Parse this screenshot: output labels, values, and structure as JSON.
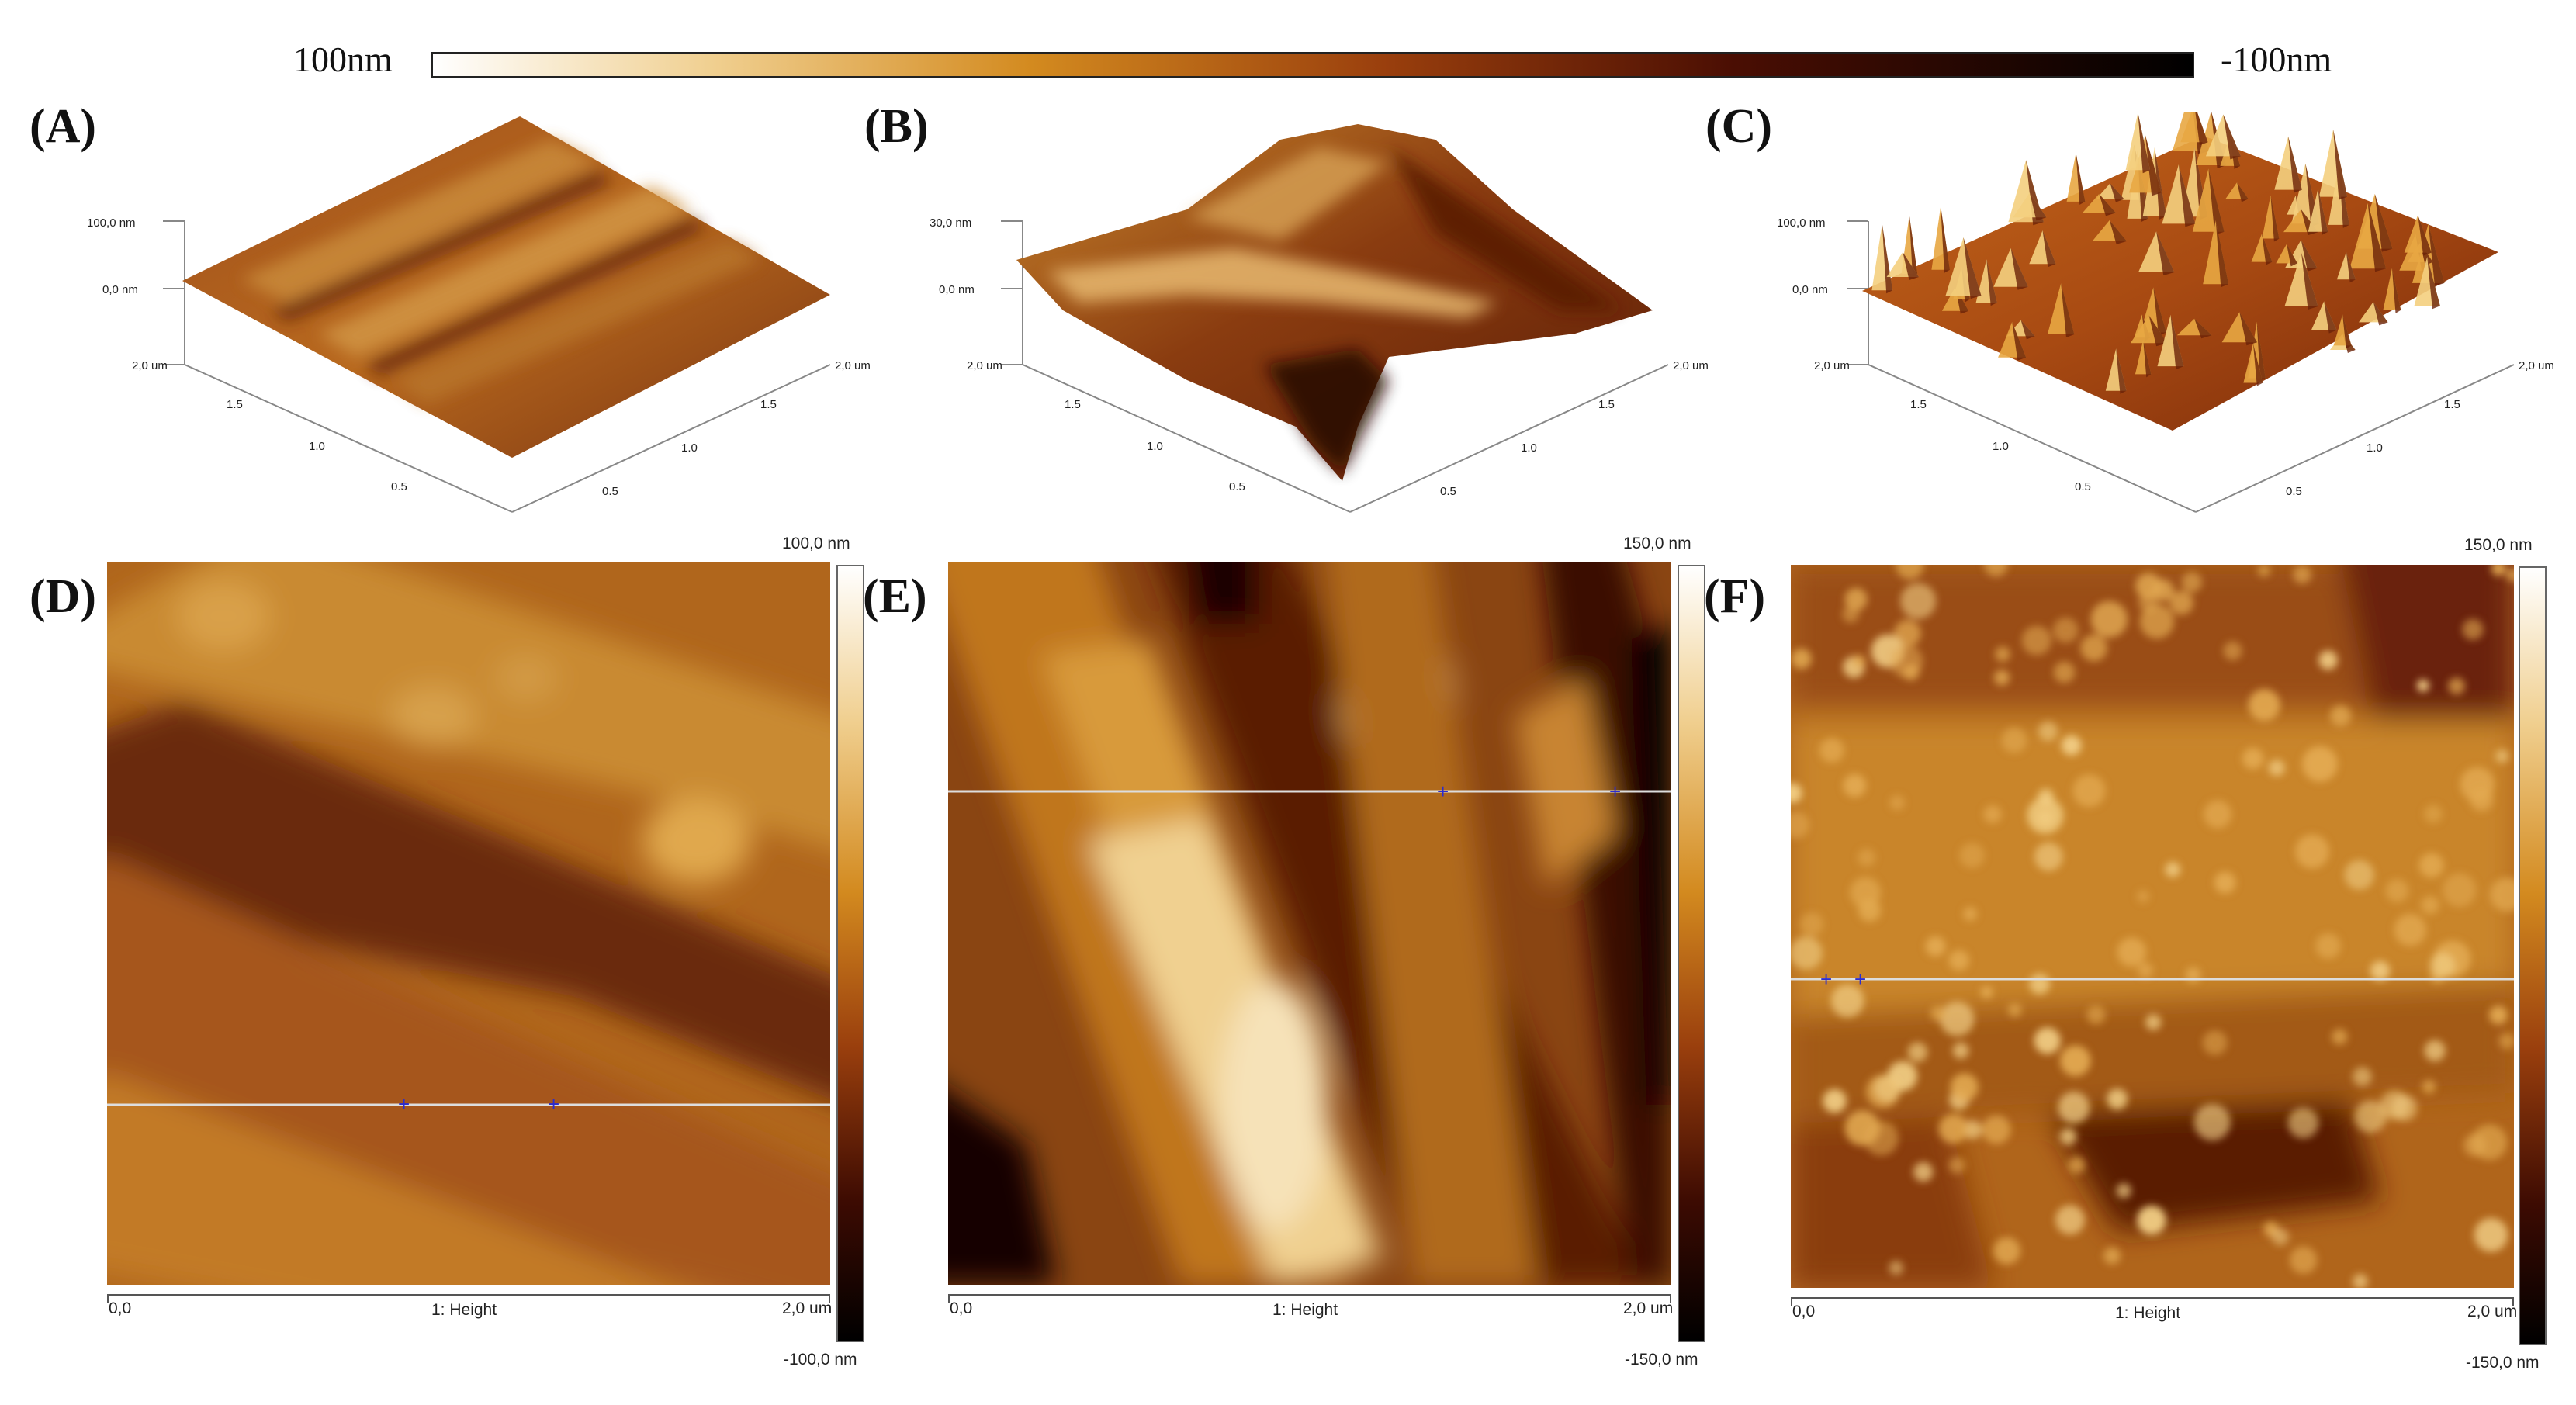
{
  "colors": {
    "afm_light": "#ffffff",
    "afm_gold": "#d58a1e",
    "afm_brown": "#7a2408",
    "afm_dark": "#000000"
  },
  "top_colorbar": {
    "max_label": "100nm",
    "min_label": "-100nm"
  },
  "panels_3d": [
    {
      "label": "(A)",
      "z_top": "100,0 nm",
      "z_mid": "0,0 nm",
      "x_end": "2,0 um",
      "y_ticks": [
        "1.5",
        "1.0",
        "0.5"
      ],
      "x_ticks": [
        "2,0 um",
        "1.5",
        "1.0",
        "0.5"
      ]
    },
    {
      "label": "(B)",
      "z_top": "30,0 nm",
      "z_mid": "0,0 nm",
      "x_end": "2,0 um",
      "y_ticks": [
        "1.5",
        "1.0",
        "0.5"
      ],
      "x_ticks": [
        "2,0 um",
        "1.5",
        "1.0",
        "0.5"
      ]
    },
    {
      "label": "(C)",
      "z_top": "100,0 nm",
      "z_mid": "0,0 nm",
      "x_end": "2,0 um",
      "y_ticks": [
        "1.5",
        "1.0",
        "0.5"
      ],
      "x_ticks": [
        "2,0 um",
        "1.5",
        "1.0",
        "0.5"
      ]
    }
  ],
  "panels_2d": [
    {
      "label": "(D)",
      "scale_top": "100,0 nm",
      "scale_bottom": "-100,0 nm",
      "axis_start": "0,0",
      "axis_center": "1: Height",
      "axis_end": "2,0 um"
    },
    {
      "label": "(E)",
      "scale_top": "150,0 nm",
      "scale_bottom": "-150,0 nm",
      "axis_start": "0,0",
      "axis_center": "1: Height",
      "axis_end": "2,0 um"
    },
    {
      "label": "(F)",
      "scale_top": "150,0 nm",
      "scale_bottom": "-150,0 nm",
      "axis_start": "0,0",
      "axis_center": "1: Height",
      "axis_end": "2,0 um"
    }
  ]
}
